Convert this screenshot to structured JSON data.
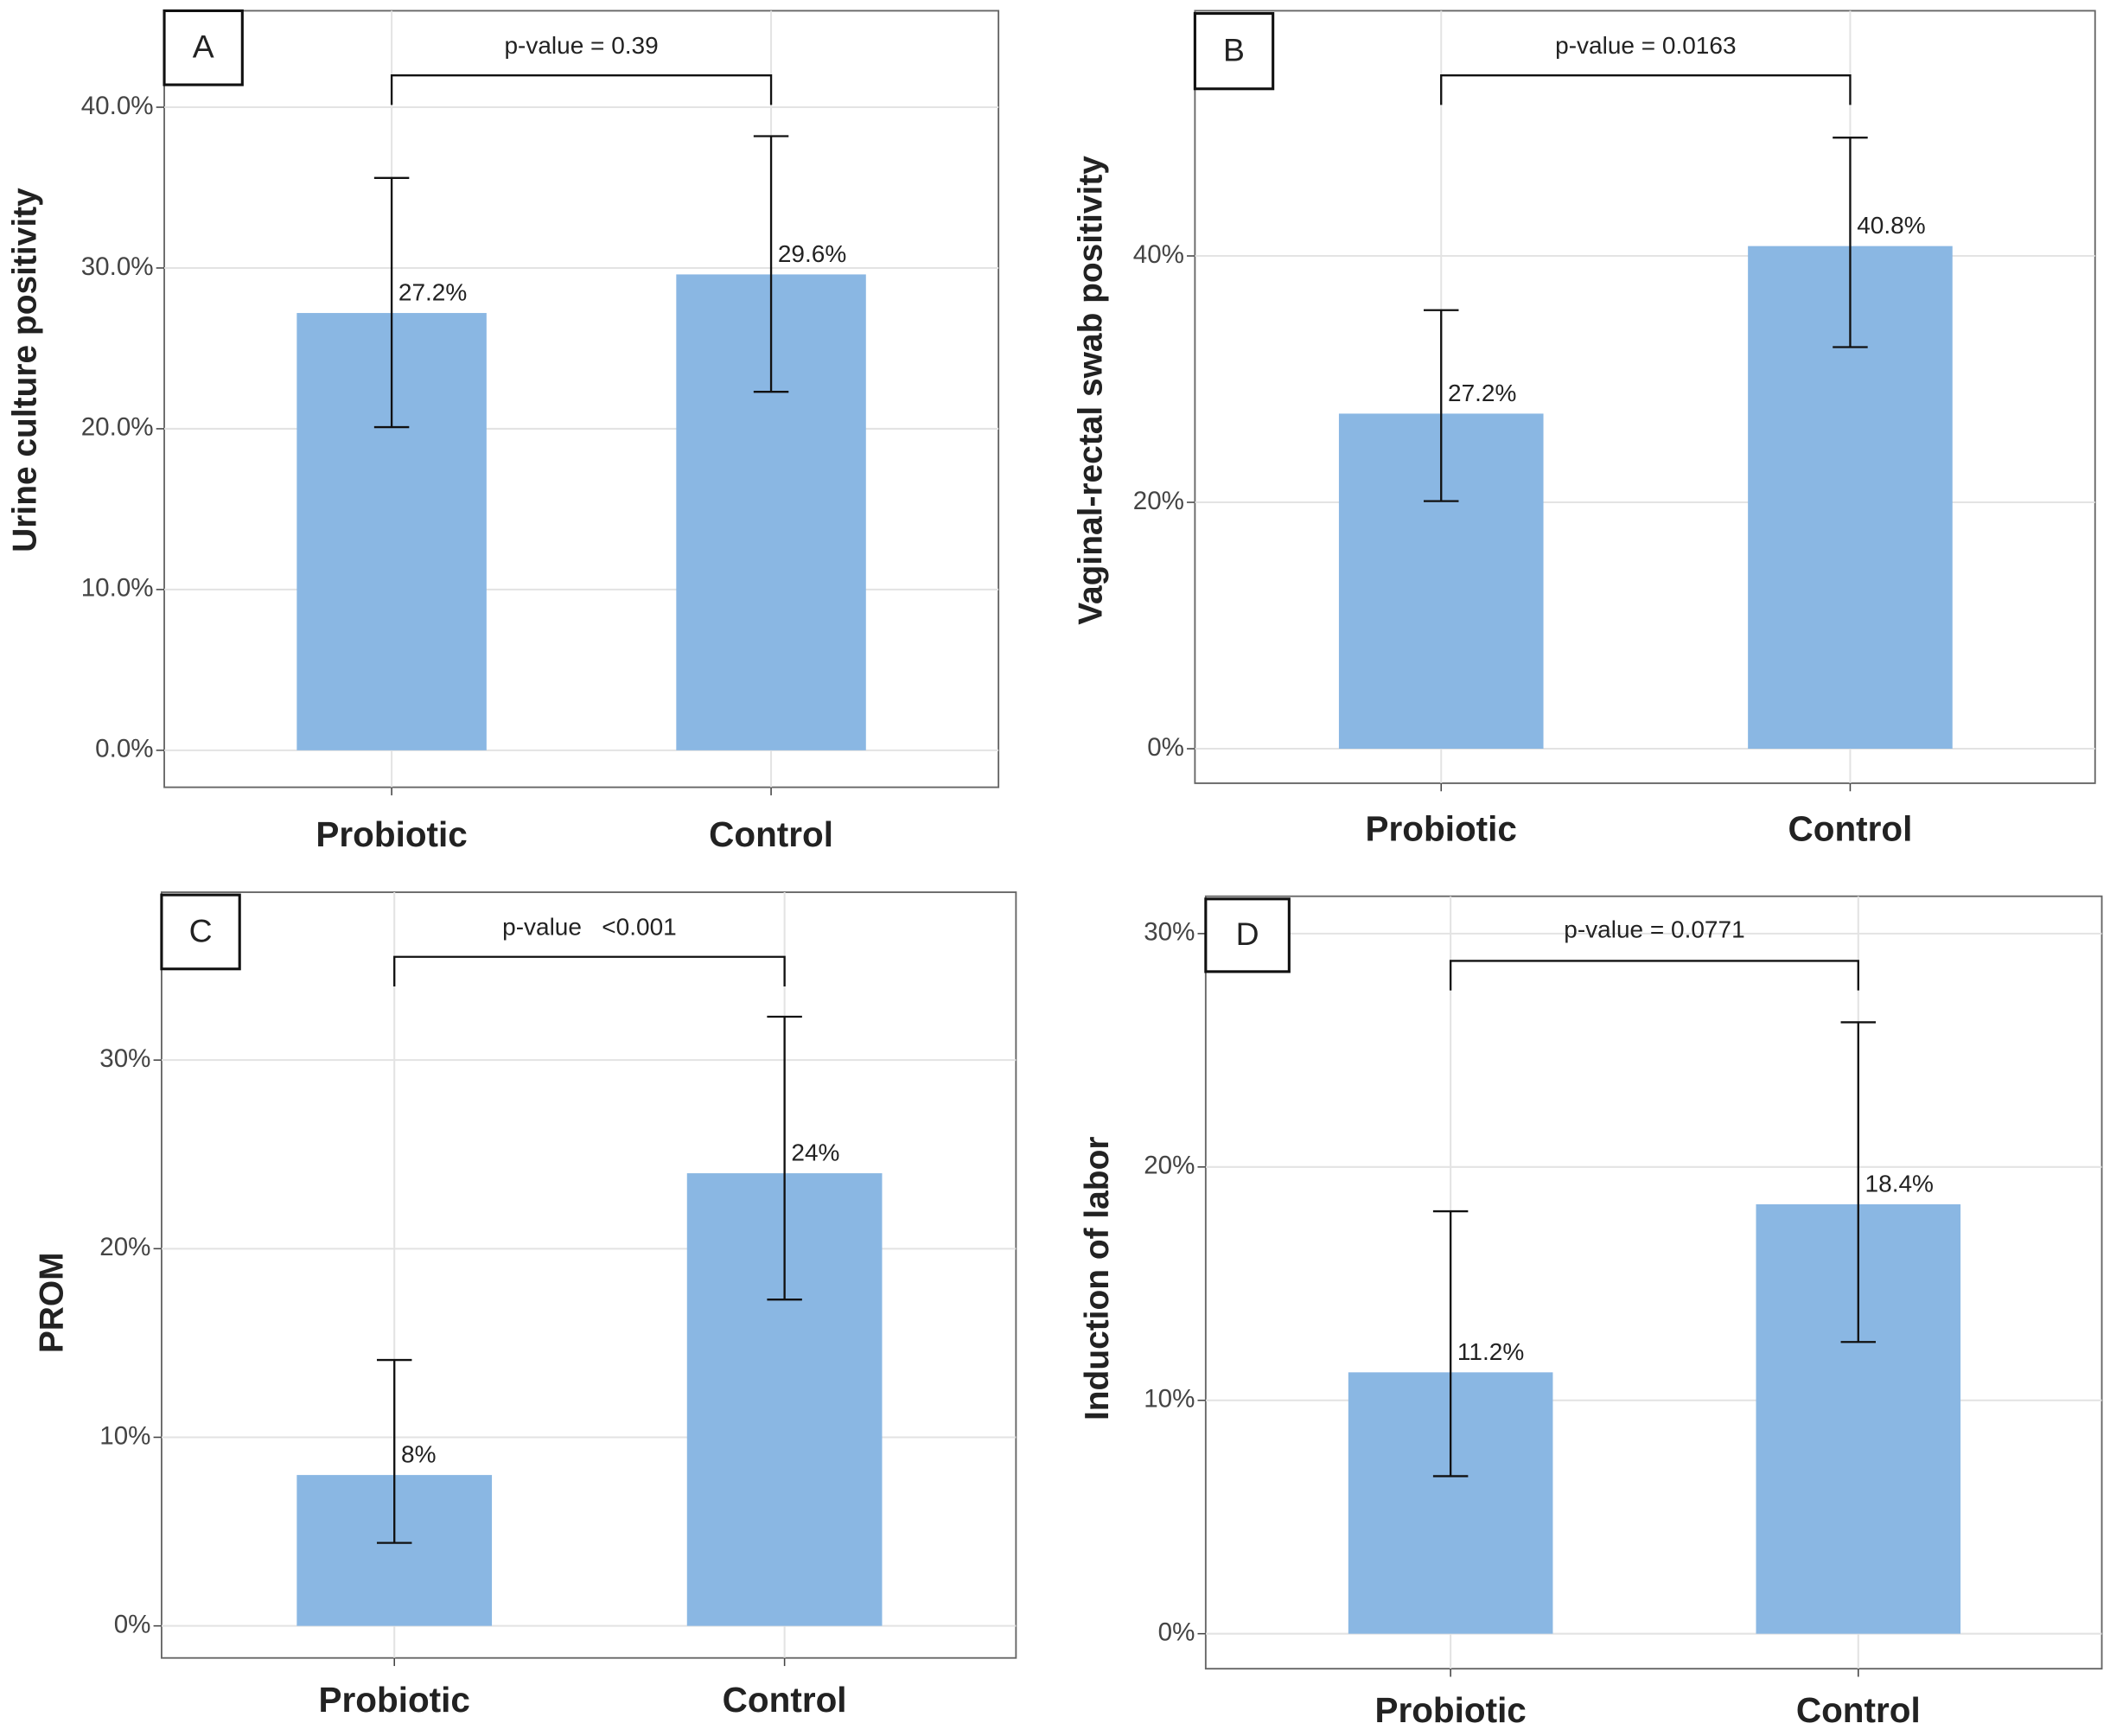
{
  "chart_data": [
    {
      "type": "bar",
      "panel": "A",
      "ylabel": "Urine culture positivity",
      "annotation": "p-value = 0.39",
      "categories": [
        "Probiotic",
        "Control"
      ],
      "values": [
        27.2,
        29.6
      ],
      "value_labels": [
        "27.2%",
        "29.6%"
      ],
      "ci_low": [
        20.1,
        22.3
      ],
      "ci_high": [
        35.6,
        38.2
      ],
      "color": "#8ab7e3",
      "ylim": [
        -2.3,
        46
      ],
      "yticks": [
        {
          "value": 0,
          "label": "0.0%"
        },
        {
          "value": 10,
          "label": "10.0%"
        },
        {
          "value": 20,
          "label": "20.0%"
        },
        {
          "value": 30,
          "label": "30.0%"
        },
        {
          "value": 40,
          "label": "40.0%"
        }
      ],
      "grid": true
    },
    {
      "type": "bar",
      "panel": "B",
      "ylabel": "Vaginal-rectal swab positivity",
      "annotation": "p-value = 0.0163",
      "categories": [
        "Probiotic",
        "Control"
      ],
      "values": [
        27.2,
        40.8
      ],
      "value_labels": [
        "27.2%",
        "40.8%"
      ],
      "ci_low": [
        20.1,
        32.6
      ],
      "ci_high": [
        35.6,
        49.6
      ],
      "color": "#8ab7e3",
      "ylim": [
        -2.8,
        59.9
      ],
      "yticks": [
        {
          "value": 0,
          "label": "0%"
        },
        {
          "value": 20,
          "label": "20%"
        },
        {
          "value": 40,
          "label": "40%"
        }
      ],
      "grid": true
    },
    {
      "type": "bar",
      "panel": "C",
      "ylabel": "PROM",
      "annotation": "p-value   <0.001",
      "categories": [
        "Probiotic",
        "Control"
      ],
      "values": [
        8,
        24
      ],
      "value_labels": [
        "8%",
        "24%"
      ],
      "ci_low": [
        4.4,
        17.3
      ],
      "ci_high": [
        14.1,
        32.3
      ],
      "color": "#8ab7e3",
      "ylim": [
        -1.7,
        38.9
      ],
      "yticks": [
        {
          "value": 0,
          "label": "0%"
        },
        {
          "value": 10,
          "label": "10%"
        },
        {
          "value": 20,
          "label": "20%"
        },
        {
          "value": 30,
          "label": "30%"
        }
      ],
      "grid": true
    },
    {
      "type": "bar",
      "panel": "D",
      "ylabel": "Induction of labor",
      "annotation": "p-value = 0.0771",
      "categories": [
        "Probiotic",
        "Control"
      ],
      "values": [
        11.2,
        18.4
      ],
      "value_labels": [
        "11.2%",
        "18.4%"
      ],
      "ci_low": [
        6.75,
        12.5
      ],
      "ci_high": [
        18.1,
        26.2
      ],
      "color": "#8ab7e3",
      "ylim": [
        -1.5,
        31.6
      ],
      "yticks": [
        {
          "value": 0,
          "label": "0%"
        },
        {
          "value": 10,
          "label": "10%"
        },
        {
          "value": 20,
          "label": "20%"
        },
        {
          "value": 30,
          "label": "30%"
        }
      ],
      "grid": true
    }
  ]
}
